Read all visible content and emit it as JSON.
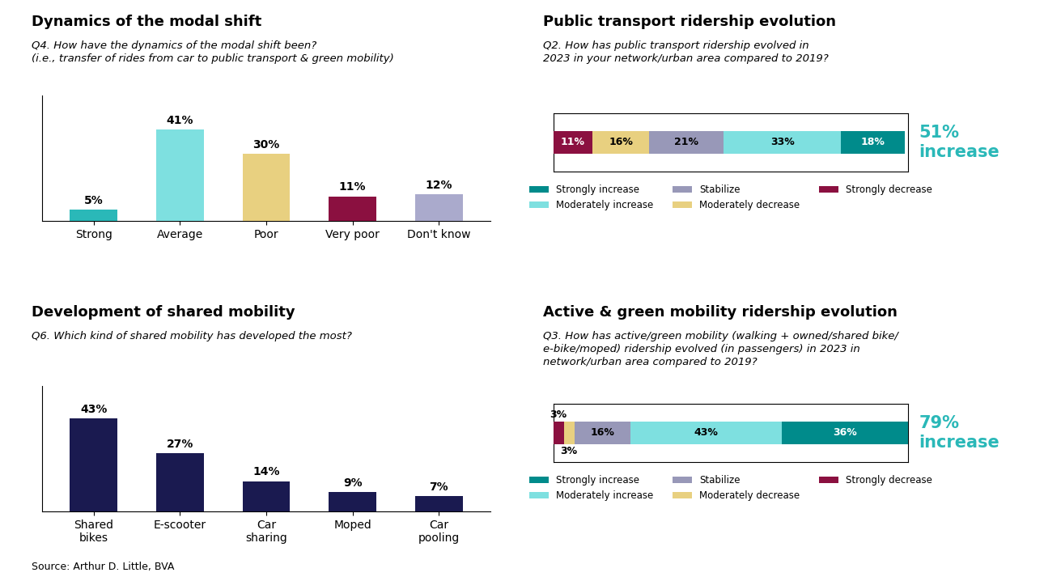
{
  "chart_data": [
    {
      "type": "bar",
      "title": "Dynamics of the modal shift",
      "subtitle": "Q4. How have the dynamics of the modal shift been?\n(i.e., transfer of rides from car to public transport & green mobility)",
      "categories": [
        "Strong",
        "Average",
        "Poor",
        "Very poor",
        "Don't know"
      ],
      "values": [
        5,
        41,
        30,
        11,
        12
      ],
      "value_labels": [
        "5%",
        "41%",
        "30%",
        "11%",
        "12%"
      ],
      "colors": [
        "#2ab8b8",
        "#7ee0e0",
        "#e8d080",
        "#8b1040",
        "#aaaacc"
      ],
      "ylim": [
        0,
        56
      ],
      "yticks": [],
      "data_labels": true,
      "tick_labels": "x",
      "grid": false
    },
    {
      "type": "bar",
      "orientation": "horizontal",
      "stacked": true,
      "title": "Public transport ridership evolution",
      "subtitle": "Q2. How has public transport ridership evolved in\n2023 in your network/urban area compared to 2019?",
      "categories": [
        null
      ],
      "series": [
        {
          "name": "Strongly decrease",
          "color": "#8b1040",
          "values": [
            11
          ],
          "value_labels": [
            "11%"
          ]
        },
        {
          "name": "Moderately decrease",
          "color": "#e8d080",
          "values": [
            16
          ],
          "value_labels": [
            "16%"
          ]
        },
        {
          "name": "Stabilize",
          "color": "#9898b8",
          "values": [
            21
          ],
          "value_labels": [
            "21%"
          ]
        },
        {
          "name": "Moderately increase",
          "color": "#7ee0e0",
          "values": [
            33
          ],
          "value_labels": [
            "33%"
          ]
        },
        {
          "name": "Strongly increase",
          "color": "#008b8b",
          "values": [
            18
          ],
          "value_labels": [
            "18%"
          ]
        }
      ],
      "xlim": [
        0,
        100
      ],
      "xticks": [],
      "annotations": [
        {
          "text": "51%\nincrease",
          "color": "#2ab8b8"
        }
      ],
      "data_labels": true,
      "tick_labels": false,
      "legend": "upper center",
      "grid": false
    },
    {
      "type": "bar",
      "title": "Development of shared mobility",
      "subtitle": "Q6. Which kind of shared mobility has developed the most?",
      "categories": [
        "Shared\nbikes",
        "E-scooter",
        "Car\nsharing",
        "Moped",
        "Car\npooling"
      ],
      "values": [
        43,
        27,
        14,
        9,
        7
      ],
      "value_labels": [
        "43%",
        "27%",
        "14%",
        "9%",
        "7%"
      ],
      "color": "#1a1a50",
      "ylim": [
        0,
        58
      ],
      "yticks": [],
      "data_labels": true,
      "tick_labels": "x",
      "grid": false
    },
    {
      "type": "bar",
      "orientation": "horizontal",
      "stacked": true,
      "title": "Active & green mobility ridership evolution",
      "subtitle": "Q3. How has active/green mobility (walking + owned/shared bike/\ne-bike/moped) ridership evolved (in passengers) in 2023 in\nnetwork/urban area compared to 2019?",
      "categories": [
        null
      ],
      "series": [
        {
          "name": "Strongly decrease",
          "color": "#8b1040",
          "values": [
            3
          ],
          "value_labels": [
            "3%"
          ]
        },
        {
          "name": "Moderately decrease",
          "color": "#e8d080",
          "values": [
            3
          ],
          "value_labels": [
            "3%"
          ]
        },
        {
          "name": "Stabilize",
          "color": "#9898b8",
          "values": [
            16
          ],
          "value_labels": [
            "16%"
          ]
        },
        {
          "name": "Moderately increase",
          "color": "#7ee0e0",
          "values": [
            43
          ],
          "value_labels": [
            "43%"
          ]
        },
        {
          "name": "Strongly increase",
          "color": "#008b8b",
          "values": [
            36
          ],
          "value_labels": [
            "36%"
          ]
        }
      ],
      "xlim": [
        0,
        101
      ],
      "xticks": [],
      "annotations": [
        {
          "text": "79%\nincrease",
          "color": "#2ab8b8"
        }
      ],
      "data_labels": true,
      "tick_labels": false,
      "legend": "upper center",
      "grid": false
    }
  ],
  "source": "Source: Arthur D. Little, BVA"
}
